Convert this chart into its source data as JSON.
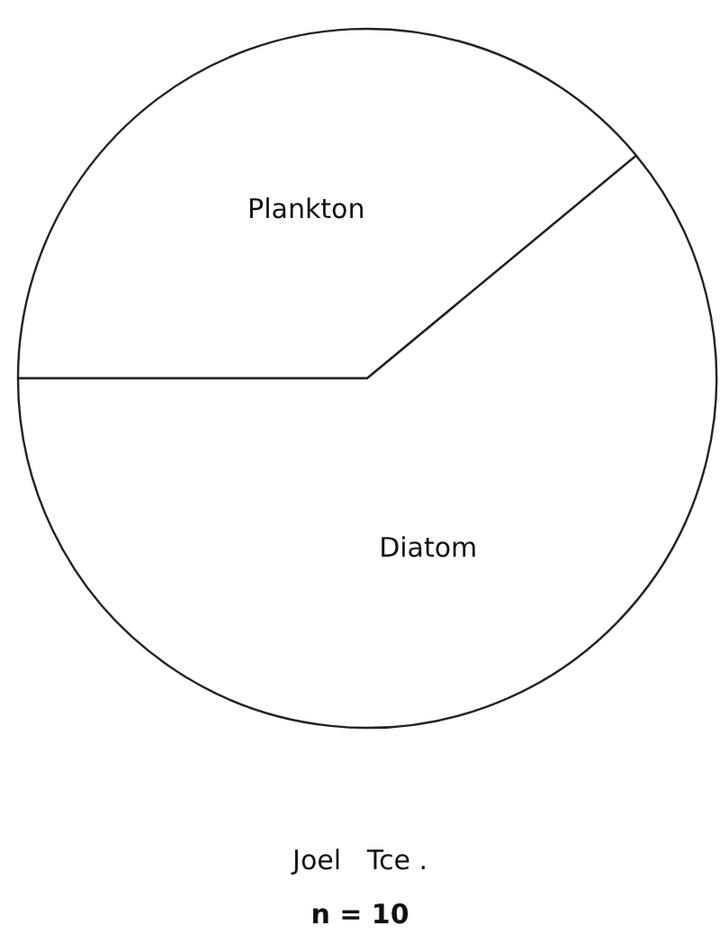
{
  "chart_data": {
    "type": "pie",
    "categories": [
      "Plankton",
      "Diatom"
    ],
    "values": [
      39,
      61
    ],
    "colors": [
      "#ffffff",
      "#ffffff"
    ],
    "annotations": [
      "Joel   Tce .",
      "n = 10"
    ]
  }
}
